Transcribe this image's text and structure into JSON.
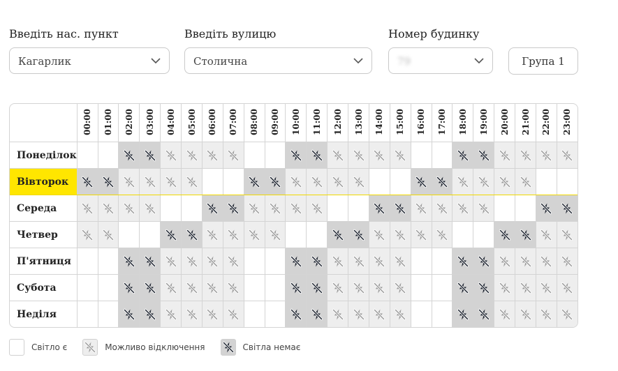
{
  "form": {
    "city_label": "Введіть нас. пункт",
    "city_value": "Кагарлик",
    "street_label": "Введіть вулицю",
    "street_value": "Столична",
    "house_label": "Номер будинку",
    "house_value": "79",
    "group_label": "Група 1"
  },
  "schedule": {
    "hours": [
      "00:00",
      "01:00",
      "02:00",
      "03:00",
      "04:00",
      "05:00",
      "06:00",
      "07:00",
      "08:00",
      "09:00",
      "10:00",
      "11:00",
      "12:00",
      "13:00",
      "14:00",
      "15:00",
      "16:00",
      "17:00",
      "18:00",
      "19:00",
      "20:00",
      "21:00",
      "22:00",
      "23:00"
    ],
    "days": [
      {
        "name": "Понеділок",
        "today": false,
        "cells": [
          "on",
          "on",
          "off",
          "off",
          "maybe",
          "maybe",
          "maybe",
          "maybe",
          "on",
          "on",
          "off",
          "off",
          "maybe",
          "maybe",
          "maybe",
          "maybe",
          "on",
          "on",
          "off",
          "off",
          "maybe",
          "maybe",
          "maybe",
          "maybe"
        ]
      },
      {
        "name": "Вівторок",
        "today": true,
        "cells": [
          "off",
          "off",
          "maybe",
          "maybe",
          "maybe",
          "maybe",
          "on",
          "on",
          "off",
          "off",
          "maybe",
          "maybe",
          "maybe",
          "maybe",
          "on",
          "on",
          "off",
          "off",
          "maybe",
          "maybe",
          "maybe",
          "maybe",
          "on",
          "on"
        ]
      },
      {
        "name": "Середа",
        "today": false,
        "cells": [
          "maybe",
          "maybe",
          "maybe",
          "maybe",
          "on",
          "on",
          "off",
          "off",
          "maybe",
          "maybe",
          "maybe",
          "maybe",
          "on",
          "on",
          "off",
          "off",
          "maybe",
          "maybe",
          "maybe",
          "maybe",
          "on",
          "on",
          "off",
          "off"
        ]
      },
      {
        "name": "Четвер",
        "today": false,
        "cells": [
          "maybe",
          "maybe",
          "on",
          "on",
          "off",
          "off",
          "maybe",
          "maybe",
          "maybe",
          "maybe",
          "on",
          "on",
          "off",
          "off",
          "maybe",
          "maybe",
          "maybe",
          "maybe",
          "on",
          "on",
          "off",
          "off",
          "maybe",
          "maybe"
        ]
      },
      {
        "name": "П'ятниця",
        "today": false,
        "cells": [
          "on",
          "on",
          "off",
          "off",
          "maybe",
          "maybe",
          "maybe",
          "maybe",
          "on",
          "on",
          "off",
          "off",
          "maybe",
          "maybe",
          "maybe",
          "maybe",
          "on",
          "on",
          "off",
          "off",
          "maybe",
          "maybe",
          "maybe",
          "maybe"
        ]
      },
      {
        "name": "Субота",
        "today": false,
        "cells": [
          "on",
          "on",
          "off",
          "off",
          "maybe",
          "maybe",
          "maybe",
          "maybe",
          "on",
          "on",
          "off",
          "off",
          "maybe",
          "maybe",
          "maybe",
          "maybe",
          "on",
          "on",
          "off",
          "off",
          "maybe",
          "maybe",
          "maybe",
          "maybe"
        ]
      },
      {
        "name": "Неділя",
        "today": false,
        "cells": [
          "on",
          "on",
          "off",
          "off",
          "maybe",
          "maybe",
          "maybe",
          "maybe",
          "on",
          "on",
          "off",
          "off",
          "maybe",
          "maybe",
          "maybe",
          "maybe",
          "on",
          "on",
          "off",
          "off",
          "maybe",
          "maybe",
          "maybe",
          "maybe"
        ]
      }
    ]
  },
  "legend": {
    "on": "Світло є",
    "maybe": "Можливо відключення",
    "off": "Світла немає"
  },
  "icons": {
    "chevron": "chevron-down-icon",
    "power_off": "no-power-icon"
  },
  "colors": {
    "today_highlight": "#ffe600",
    "maybe_bg": "#eeeeee",
    "off_bg": "#d3d3d3",
    "icon_dark": "#1e2430",
    "icon_light": "#9a9a9a"
  }
}
